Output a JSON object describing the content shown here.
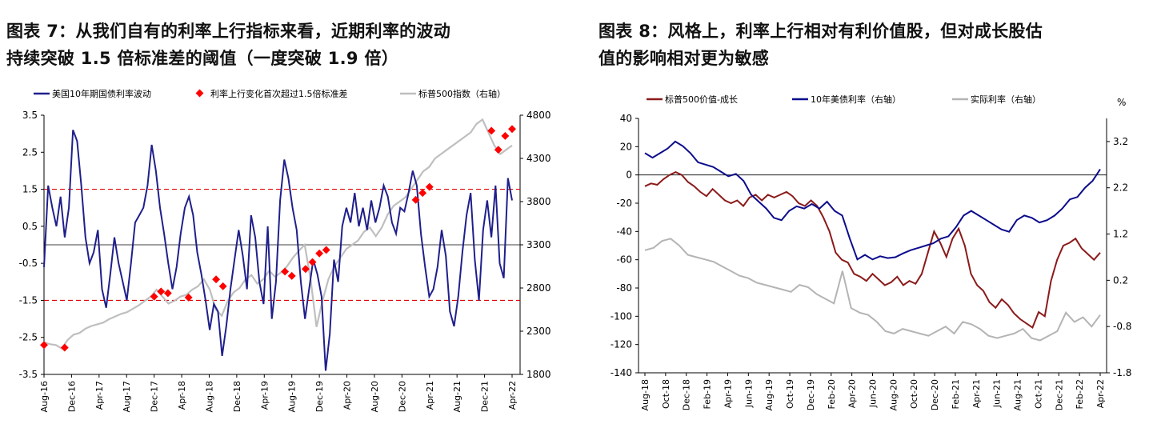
{
  "left": {
    "title_line1": "图表 7：从我们自有的利率上行指标来看，近期利率的波动",
    "title_line2": "持续突破 1.5 倍标准差的阈值（一度突破 1.9 倍）",
    "chart_data": {
      "type": "line",
      "legend": [
        "美国10年期国债利率波动",
        "利率上行变化首次超过1.5倍标准差",
        "标普500指数（右轴）"
      ],
      "x_tick_labels": [
        "Aug-16",
        "Dec-16",
        "Apr-17",
        "Aug-17",
        "Dec-17",
        "Apr-18",
        "Aug-18",
        "Dec-18",
        "Apr-19",
        "Aug-19",
        "Dec-19",
        "Apr-20",
        "Aug-20",
        "Dec-20",
        "Apr-21",
        "Aug-21",
        "Dec-21",
        "Apr-22"
      ],
      "y_left_ticks": [
        "3.5",
        "2.5",
        "1.5",
        "0.5",
        "-0.5",
        "-1.5",
        "-2.5",
        "-3.5"
      ],
      "y_right_ticks": [
        "4800",
        "4300",
        "3800",
        "3300",
        "2800",
        "2300",
        "1800"
      ],
      "ylim_left": [
        -3.5,
        3.5
      ],
      "ylim_right": [
        1800,
        4800
      ],
      "reference_lines": [
        1.5,
        -1.5,
        0
      ],
      "series": [
        {
          "name": "美国10年期国债利率波动",
          "axis": "left",
          "color": "#1f1f8c",
          "values": [
            -0.6,
            1.6,
            1.0,
            0.5,
            1.3,
            0.2,
            1.0,
            3.1,
            2.8,
            1.6,
            0.2,
            -0.5,
            -0.2,
            0.4,
            -1.2,
            -1.7,
            -0.8,
            0.2,
            -0.5,
            -1.0,
            -1.5,
            -0.5,
            0.6,
            0.8,
            1.0,
            1.6,
            2.7,
            2.0,
            1.0,
            0.3,
            -0.5,
            -1.2,
            -0.6,
            0.3,
            1.0,
            1.3,
            0.8,
            -0.2,
            -0.8,
            -1.5,
            -2.3,
            -1.6,
            -1.8,
            -3.0,
            -2.2,
            -1.2,
            -0.4,
            0.4,
            -0.3,
            -1.2,
            0.8,
            0.2,
            -1.0,
            -1.6,
            0.5,
            -2.0,
            -1.0,
            1.2,
            2.3,
            1.8,
            1.0,
            0.4,
            -1.0,
            -2.0,
            -1.2,
            -0.4,
            -0.8,
            -1.4,
            -3.4,
            -2.4,
            -0.4,
            -1.0,
            0.5,
            1.0,
            0.6,
            1.4,
            0.5,
            1.0,
            0.4,
            1.2,
            0.6,
            1.0,
            1.6,
            1.3,
            0.6,
            0.3,
            1.0,
            0.9,
            1.4,
            2.0,
            1.6,
            0.3,
            -0.6,
            -1.4,
            -1.2,
            -0.6,
            0.4,
            -0.3,
            -1.8,
            -2.2,
            -1.4,
            -0.2,
            0.8,
            1.4,
            -0.4,
            -1.5,
            0.4,
            1.2,
            0.2,
            1.6,
            -0.5,
            -0.9,
            1.8,
            1.2
          ]
        },
        {
          "name": "利率上行变化首次超过1.5倍标准差",
          "axis": "right",
          "color": "#ff0000",
          "points": [
            [
              "Aug-16",
              2140
            ],
            [
              "Nov-16",
              2110
            ],
            [
              "Dec-17",
              2700
            ],
            [
              "Jan-18",
              2760
            ],
            [
              "Feb-18",
              2740
            ],
            [
              "May-18",
              2690
            ],
            [
              "Sep-18",
              2900
            ],
            [
              "Oct-18",
              2820
            ],
            [
              "Jul-19",
              2990
            ],
            [
              "Aug-19",
              2940
            ],
            [
              "Oct-19",
              3020
            ],
            [
              "Nov-19",
              3100
            ],
            [
              "Dec-19",
              3200
            ],
            [
              "Jan-20",
              3240
            ],
            [
              "Feb-21",
              3820
            ],
            [
              "Mar-21",
              3900
            ],
            [
              "Apr-21",
              3970
            ],
            [
              "Jan-22",
              4620
            ],
            [
              "Feb-22",
              4400
            ],
            [
              "Mar-22",
              4560
            ],
            [
              "Apr-22",
              4640
            ]
          ]
        },
        {
          "name": "标普500指数（右轴）",
          "axis": "right",
          "color": "#bfbfbf",
          "values": [
            2170,
            2150,
            2140,
            2100,
            2200,
            2260,
            2280,
            2330,
            2360,
            2380,
            2400,
            2440,
            2470,
            2500,
            2520,
            2560,
            2600,
            2650,
            2700,
            2780,
            2700,
            2620,
            2650,
            2700,
            2720,
            2780,
            2820,
            2900,
            2780,
            2550,
            2480,
            2650,
            2750,
            2800,
            2900,
            2950,
            2850,
            2900,
            3000,
            2930,
            2980,
            3050,
            3150,
            3230,
            3300,
            2900,
            2350,
            2650,
            2900,
            3050,
            3150,
            3250,
            3300,
            3350,
            3450,
            3500,
            3400,
            3500,
            3650,
            3750,
            3800,
            3850,
            3950,
            4050,
            4150,
            4200,
            4300,
            4350,
            4400,
            4450,
            4500,
            4550,
            4600,
            4700,
            4750,
            4600,
            4450,
            4350,
            4400,
            4450
          ]
        }
      ]
    }
  },
  "right": {
    "title_line1": "图表 8：风格上，利率上行相对有利价值股，但对成长股估",
    "title_line2": "值的影响相对更为敏感",
    "unit_label": "%",
    "chart_data": {
      "type": "line",
      "legend": [
        "标普500价值-成长",
        "10年美债利率（右轴）",
        "实际利率（右轴）"
      ],
      "x_tick_labels": [
        "Aug-18",
        "Oct-18",
        "Dec-18",
        "Feb-19",
        "Apr-19",
        "Jun-19",
        "Aug-19",
        "Oct-19",
        "Dec-19",
        "Feb-20",
        "Apr-20",
        "Jun-20",
        "Aug-20",
        "Oct-20",
        "Dec-20",
        "Feb-21",
        "Apr-21",
        "Jun-21",
        "Aug-21",
        "Oct-21",
        "Dec-21",
        "Feb-22",
        "Apr-22"
      ],
      "y_left_ticks": [
        "40",
        "20",
        "0",
        "-20",
        "-40",
        "-60",
        "-80",
        "-100",
        "-120",
        "-140"
      ],
      "y_right_ticks": [
        "3.2",
        "2.2",
        "1.2",
        "0.2",
        "-0.8",
        "-1.8"
      ],
      "ylim_left": [
        -140,
        40
      ],
      "ylim_right": [
        -1.8,
        3.7
      ],
      "series": [
        {
          "name": "标普500价值-成长",
          "axis": "left",
          "color": "#8b1a1a",
          "values": [
            -8,
            -6,
            -7,
            -3,
            0,
            2,
            0,
            -5,
            -8,
            -12,
            -15,
            -10,
            -14,
            -18,
            -20,
            -18,
            -22,
            -16,
            -14,
            -18,
            -14,
            -16,
            -14,
            -12,
            -15,
            -20,
            -22,
            -18,
            -22,
            -30,
            -40,
            -55,
            -60,
            -62,
            -70,
            -72,
            -75,
            -70,
            -74,
            -78,
            -76,
            -72,
            -78,
            -75,
            -77,
            -70,
            -55,
            -40,
            -48,
            -58,
            -45,
            -38,
            -50,
            -70,
            -78,
            -82,
            -90,
            -94,
            -88,
            -92,
            -98,
            -102,
            -105,
            -108,
            -97,
            -100,
            -75,
            -60,
            -50,
            -48,
            -45,
            -52,
            -56,
            -60,
            -55
          ]
        },
        {
          "name": "10年美债利率（右轴）",
          "axis": "right",
          "color": "#0c0c8c",
          "values": [
            2.95,
            2.85,
            2.95,
            3.05,
            3.2,
            3.1,
            2.95,
            2.75,
            2.7,
            2.65,
            2.55,
            2.45,
            2.5,
            2.35,
            2.05,
            1.9,
            1.75,
            1.55,
            1.5,
            1.7,
            1.8,
            1.75,
            1.85,
            1.75,
            1.9,
            1.7,
            1.6,
            1.1,
            0.65,
            0.75,
            0.65,
            0.72,
            0.68,
            0.7,
            0.78,
            0.85,
            0.9,
            0.95,
            1.0,
            1.1,
            1.15,
            1.35,
            1.6,
            1.7,
            1.6,
            1.5,
            1.4,
            1.3,
            1.25,
            1.5,
            1.6,
            1.55,
            1.45,
            1.5,
            1.6,
            1.75,
            1.95,
            2.0,
            2.2,
            2.35,
            2.6
          ]
        },
        {
          "name": "实际利率（右轴）",
          "axis": "right",
          "color": "#b4b4b4",
          "values": [
            0.85,
            0.9,
            1.05,
            1.1,
            0.95,
            0.75,
            0.7,
            0.65,
            0.6,
            0.5,
            0.4,
            0.3,
            0.25,
            0.15,
            0.1,
            0.05,
            0.0,
            -0.05,
            0.1,
            0.05,
            -0.1,
            -0.2,
            -0.3,
            0.4,
            -0.4,
            -0.5,
            -0.55,
            -0.7,
            -0.9,
            -0.95,
            -0.85,
            -0.9,
            -0.95,
            -1.0,
            -0.9,
            -0.8,
            -0.95,
            -0.7,
            -0.75,
            -0.85,
            -1.0,
            -1.05,
            -1.0,
            -0.95,
            -0.85,
            -1.05,
            -1.1,
            -1.0,
            -0.9,
            -0.5,
            -0.7,
            -0.6,
            -0.8,
            -0.55
          ]
        }
      ]
    }
  }
}
